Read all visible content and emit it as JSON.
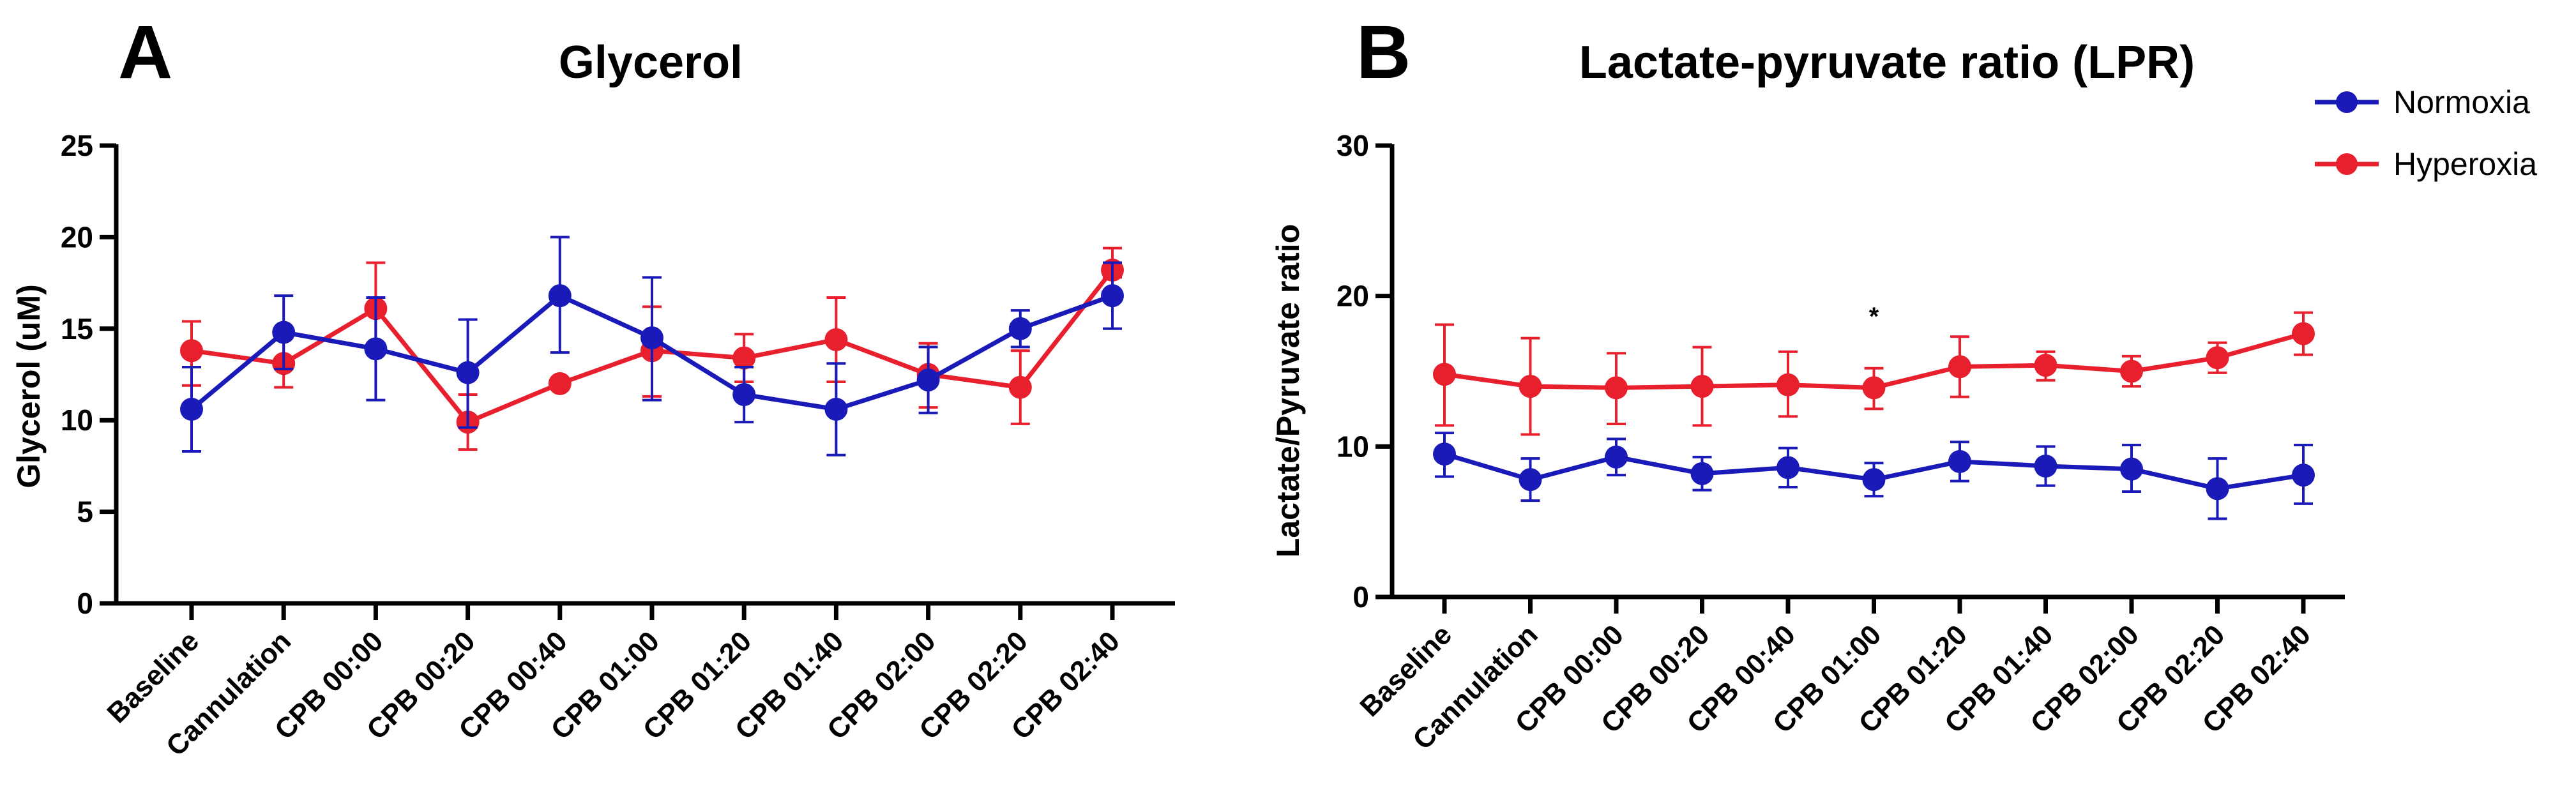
{
  "colors": {
    "normoxia": "#1a1ab8",
    "hyperoxia": "#e8202e",
    "axis": "#000000"
  },
  "legend": {
    "position": "top-right",
    "items": [
      {
        "name": "Normoxia",
        "color": "#1a1ab8"
      },
      {
        "name": "Hyperoxia",
        "color": "#e8202e"
      }
    ]
  },
  "chart_data": [
    {
      "panel": "A",
      "type": "line",
      "title": "Glycerol",
      "xlabel": "",
      "ylabel": "Glycerol (uM)",
      "ylim": [
        0,
        25
      ],
      "yticks": [
        0,
        5,
        10,
        15,
        20,
        25
      ],
      "grid": false,
      "categories": [
        "Baseline",
        "Cannulation",
        "CPB 00:00",
        "CPB 00:20",
        "CPB 00:40",
        "CPB 01:00",
        "CPB 01:20",
        "CPB 01:40",
        "CPB 02:00",
        "CPB 02:20",
        "CPB 02:40"
      ],
      "series": [
        {
          "name": "Hyperoxia",
          "color": "#e8202e",
          "values": [
            13.8,
            13.1,
            16.1,
            9.9,
            12.0,
            13.8,
            13.4,
            14.4,
            12.5,
            11.8,
            18.2
          ],
          "err_low": [
            11.9,
            11.8,
            13.8,
            8.4,
            12.0,
            11.3,
            12.1,
            12.1,
            10.7,
            9.8,
            17.8
          ],
          "err_high": [
            15.4,
            14.5,
            18.6,
            11.4,
            12.0,
            16.2,
            14.7,
            16.7,
            14.2,
            13.8,
            19.4
          ]
        },
        {
          "name": "Normoxia",
          "color": "#1a1ab8",
          "values": [
            10.6,
            14.8,
            13.9,
            12.6,
            16.8,
            14.5,
            11.4,
            10.6,
            12.2,
            15.0,
            16.8
          ],
          "err_low": [
            8.3,
            12.8,
            11.1,
            9.6,
            13.7,
            11.1,
            9.9,
            8.1,
            10.4,
            14.0,
            15.0
          ],
          "err_high": [
            12.9,
            16.8,
            16.7,
            15.5,
            20.0,
            17.8,
            12.9,
            13.1,
            14.0,
            16.0,
            18.6
          ]
        }
      ]
    },
    {
      "panel": "B",
      "type": "line",
      "title": "Lactate-pyruvate ratio (LPR)",
      "xlabel": "",
      "ylabel": "Lactate/Pyruvate ratio",
      "ylim": [
        0,
        30
      ],
      "yticks": [
        0,
        10,
        20,
        30
      ],
      "grid": false,
      "categories": [
        "Baseline",
        "Cannulation",
        "CPB 00:00",
        "CPB 00:20",
        "CPB 00:40",
        "CPB 01:00",
        "CPB 01:20",
        "CPB 01:40",
        "CPB 02:00",
        "CPB 02:20",
        "CPB 02:40"
      ],
      "annotations": [
        {
          "text": "*",
          "category": "CPB 01:00",
          "y": 19
        }
      ],
      "series": [
        {
          "name": "Hyperoxia",
          "color": "#e8202e",
          "values": [
            14.8,
            14.0,
            13.9,
            14.0,
            14.1,
            13.9,
            15.3,
            15.4,
            15.0,
            15.9,
            17.5
          ],
          "err_low": [
            11.4,
            10.8,
            11.5,
            11.4,
            12.0,
            12.5,
            13.3,
            14.4,
            14.0,
            14.9,
            16.1
          ],
          "err_high": [
            18.1,
            17.2,
            16.2,
            16.6,
            16.3,
            15.2,
            17.3,
            16.3,
            16.0,
            16.9,
            18.9
          ]
        },
        {
          "name": "Normoxia",
          "color": "#1a1ab8",
          "values": [
            9.5,
            7.8,
            9.3,
            8.2,
            8.6,
            7.8,
            9.0,
            8.7,
            8.5,
            7.2,
            8.1
          ],
          "err_low": [
            8.0,
            6.4,
            8.1,
            7.1,
            7.3,
            6.7,
            7.7,
            7.4,
            7.0,
            5.2,
            6.2
          ],
          "err_high": [
            10.9,
            9.2,
            10.5,
            9.3,
            9.9,
            8.9,
            10.3,
            10.0,
            10.1,
            9.2,
            10.1
          ]
        }
      ]
    }
  ]
}
